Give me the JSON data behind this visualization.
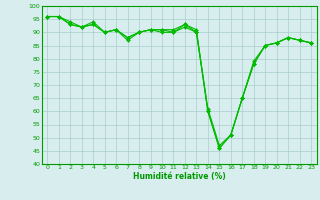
{
  "line1": {
    "x": [
      0,
      1,
      2,
      3,
      4,
      5,
      6,
      7,
      8,
      9,
      10,
      11,
      12,
      13,
      14,
      15,
      16,
      17,
      18,
      19,
      20,
      21,
      22,
      23
    ],
    "y": [
      96,
      96,
      93,
      92,
      93,
      90,
      91,
      88,
      90,
      91,
      91,
      91,
      93,
      91,
      60,
      46,
      51,
      65,
      78,
      85,
      86,
      88,
      87,
      86
    ]
  },
  "line2": {
    "x": [
      0,
      1,
      2,
      3,
      4,
      5,
      6,
      7,
      8,
      9,
      10,
      11,
      12,
      13,
      14,
      15,
      16,
      17,
      18,
      19,
      20,
      21,
      22,
      23
    ],
    "y": [
      96,
      96,
      93,
      92,
      93,
      90,
      91,
      88,
      90,
      91,
      91,
      90,
      92,
      90,
      61,
      47,
      51,
      65,
      78,
      85,
      86,
      88,
      87,
      86
    ]
  },
  "line3": {
    "x": [
      0,
      1,
      2,
      3,
      4,
      5,
      6,
      7,
      8,
      9,
      10,
      11,
      12,
      13,
      14,
      15,
      16,
      17,
      18,
      19,
      20,
      21,
      22,
      23
    ],
    "y": [
      96,
      96,
      94,
      92,
      94,
      90,
      91,
      87,
      90,
      91,
      90,
      90,
      93,
      90,
      60,
      46,
      51,
      65,
      79,
      85,
      86,
      88,
      87,
      86
    ]
  },
  "line_color": "#00bb00",
  "bg_color": "#d8eeee",
  "grid_color": "#aacccc",
  "xlabel": "Humidité relative (%)",
  "xlabel_color": "#009900",
  "xlim": [
    -0.5,
    23.5
  ],
  "ylim": [
    40,
    100
  ],
  "yticks": [
    40,
    45,
    50,
    55,
    60,
    65,
    70,
    75,
    80,
    85,
    90,
    95,
    100
  ],
  "xticks": [
    0,
    1,
    2,
    3,
    4,
    5,
    6,
    7,
    8,
    9,
    10,
    11,
    12,
    13,
    14,
    15,
    16,
    17,
    18,
    19,
    20,
    21,
    22,
    23
  ],
  "marker": "D",
  "markersize": 2.0,
  "linewidth": 0.8
}
